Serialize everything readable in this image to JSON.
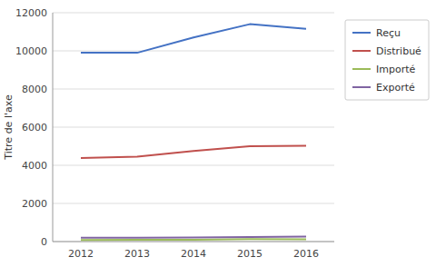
{
  "chart_data": {
    "type": "line",
    "categories": [
      "2012",
      "2013",
      "2014",
      "2015",
      "2016"
    ],
    "series": [
      {
        "name": "Reçu",
        "color": "#4472C4",
        "values": [
          9900,
          9900,
          10700,
          11400,
          11150
        ]
      },
      {
        "name": "Distribué",
        "color": "#C0504D",
        "values": [
          4380,
          4450,
          4750,
          5000,
          5020
        ]
      },
      {
        "name": "Importé",
        "color": "#9BBB59",
        "values": [
          80,
          90,
          100,
          130,
          120
        ]
      },
      {
        "name": "Exporté",
        "color": "#8064A2",
        "values": [
          200,
          200,
          210,
          240,
          260
        ]
      }
    ],
    "ylabel": "Titre de l'axe",
    "ylim": [
      0,
      12000
    ],
    "yticks": [
      0,
      2000,
      4000,
      6000,
      8000,
      10000,
      12000
    ],
    "grid": true,
    "legend": "right"
  }
}
